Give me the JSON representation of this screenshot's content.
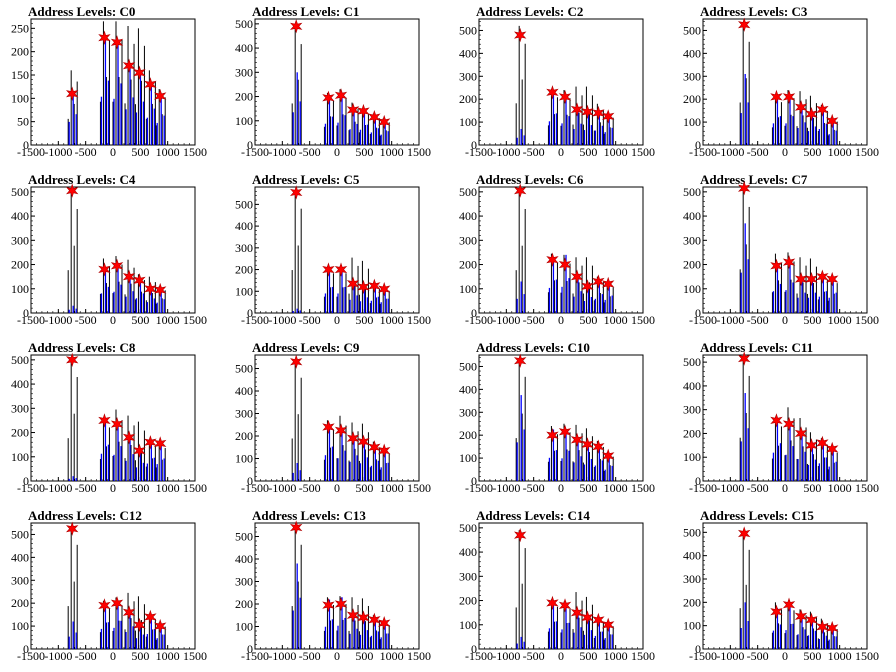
{
  "chart_data": [
    {
      "type": "bar",
      "title": "Address Levels: C0",
      "xlim": [
        -1500,
        1500
      ],
      "ylim": [
        0,
        270
      ],
      "xticks": [
        -1500,
        -1000,
        -500,
        0,
        500,
        1000,
        1500
      ],
      "yticks": [
        0,
        50,
        100,
        150,
        200,
        250
      ],
      "peaks": [
        {
          "x": -710,
          "black": 160,
          "blue": 110,
          "marker": 110
        },
        {
          "x": -120,
          "black": 265,
          "blue": 230,
          "marker": 230
        },
        {
          "x": 110,
          "black": 265,
          "blue": 220,
          "marker": 220
        },
        {
          "x": 330,
          "black": 255,
          "blue": 170,
          "marker": 170
        },
        {
          "x": 520,
          "black": 250,
          "blue": 155,
          "marker": 155
        },
        {
          "x": 720,
          "black": 160,
          "blue": 130,
          "marker": 130
        },
        {
          "x": 900,
          "black": 120,
          "blue": 105,
          "marker": 105
        }
      ]
    },
    {
      "type": "bar",
      "title": "Address Levels: C1",
      "xlim": [
        -1500,
        1500
      ],
      "ylim": [
        0,
        520
      ],
      "xticks": [
        -1500,
        -1000,
        -500,
        0,
        500,
        1000,
        1500
      ],
      "yticks": [
        0,
        100,
        200,
        300,
        400,
        500
      ],
      "peaks": [
        {
          "x": -710,
          "black": 490,
          "blue": 300,
          "marker": 490
        },
        {
          "x": -120,
          "black": 215,
          "blue": 195,
          "marker": 195
        },
        {
          "x": 110,
          "black": 230,
          "blue": 205,
          "marker": 205
        },
        {
          "x": 330,
          "black": 175,
          "blue": 145,
          "marker": 145
        },
        {
          "x": 520,
          "black": 150,
          "blue": 140,
          "marker": 140
        },
        {
          "x": 720,
          "black": 130,
          "blue": 115,
          "marker": 115
        },
        {
          "x": 900,
          "black": 110,
          "blue": 95,
          "marker": 95
        }
      ]
    },
    {
      "type": "bar",
      "title": "Address Levels: C2",
      "xlim": [
        -1500,
        1500
      ],
      "ylim": [
        0,
        550
      ],
      "xticks": [
        -1500,
        -1000,
        -500,
        0,
        500,
        1000,
        1500
      ],
      "yticks": [
        0,
        100,
        200,
        300,
        400,
        500
      ],
      "peaks": [
        {
          "x": -710,
          "black": 520,
          "blue": 70,
          "marker": 480
        },
        {
          "x": -120,
          "black": 245,
          "blue": 230,
          "marker": 230
        },
        {
          "x": 110,
          "black": 240,
          "blue": 210,
          "marker": 210
        },
        {
          "x": 330,
          "black": 255,
          "blue": 155,
          "marker": 155
        },
        {
          "x": 520,
          "black": 255,
          "blue": 145,
          "marker": 145
        },
        {
          "x": 720,
          "black": 180,
          "blue": 140,
          "marker": 140
        },
        {
          "x": 900,
          "black": 140,
          "blue": 125,
          "marker": 125
        }
      ]
    },
    {
      "type": "bar",
      "title": "Address Levels: C3",
      "xlim": [
        -1500,
        1500
      ],
      "ylim": [
        0,
        550
      ],
      "xticks": [
        -1500,
        -1000,
        -500,
        0,
        500,
        1000,
        1500
      ],
      "yticks": [
        0,
        100,
        200,
        300,
        400,
        500
      ],
      "peaks": [
        {
          "x": -710,
          "black": 530,
          "blue": 310,
          "marker": 525
        },
        {
          "x": -120,
          "black": 220,
          "blue": 210,
          "marker": 210
        },
        {
          "x": 110,
          "black": 240,
          "blue": 210,
          "marker": 210
        },
        {
          "x": 330,
          "black": 235,
          "blue": 165,
          "marker": 165
        },
        {
          "x": 520,
          "black": 215,
          "blue": 135,
          "marker": 135
        },
        {
          "x": 720,
          "black": 175,
          "blue": 155,
          "marker": 155
        },
        {
          "x": 900,
          "black": 120,
          "blue": 105,
          "marker": 105
        }
      ]
    },
    {
      "type": "bar",
      "title": "Address Levels: C4",
      "xlim": [
        -1500,
        1500
      ],
      "ylim": [
        0,
        520
      ],
      "xticks": [
        -1500,
        -1000,
        -500,
        0,
        500,
        1000,
        1500
      ],
      "yticks": [
        0,
        100,
        200,
        300,
        400,
        500
      ],
      "peaks": [
        {
          "x": -710,
          "black": 505,
          "blue": 30,
          "marker": 505
        },
        {
          "x": -120,
          "black": 225,
          "blue": 180,
          "marker": 180
        },
        {
          "x": 110,
          "black": 235,
          "blue": 195,
          "marker": 195
        },
        {
          "x": 330,
          "black": 220,
          "blue": 150,
          "marker": 150
        },
        {
          "x": 520,
          "black": 160,
          "blue": 135,
          "marker": 135
        },
        {
          "x": 720,
          "black": 150,
          "blue": 100,
          "marker": 100
        },
        {
          "x": 900,
          "black": 110,
          "blue": 95,
          "marker": 95
        }
      ]
    },
    {
      "type": "bar",
      "title": "Address Levels: C5",
      "xlim": [
        -1500,
        1500
      ],
      "ylim": [
        0,
        580
      ],
      "xticks": [
        -1500,
        -1000,
        -500,
        0,
        500,
        1000,
        1500
      ],
      "yticks": [
        0,
        100,
        200,
        300,
        400,
        500
      ],
      "peaks": [
        {
          "x": -710,
          "black": 565,
          "blue": 20,
          "marker": 555
        },
        {
          "x": -120,
          "black": 215,
          "blue": 200,
          "marker": 200
        },
        {
          "x": 110,
          "black": 215,
          "blue": 200,
          "marker": 200
        },
        {
          "x": 330,
          "black": 255,
          "blue": 135,
          "marker": 135
        },
        {
          "x": 520,
          "black": 240,
          "blue": 120,
          "marker": 120
        },
        {
          "x": 720,
          "black": 130,
          "blue": 125,
          "marker": 125
        },
        {
          "x": 900,
          "black": 120,
          "blue": 110,
          "marker": 110
        }
      ]
    },
    {
      "type": "bar",
      "title": "Address Levels: C6",
      "xlim": [
        -1500,
        1500
      ],
      "ylim": [
        0,
        520
      ],
      "xticks": [
        -1500,
        -1000,
        -500,
        0,
        500,
        1000,
        1500
      ],
      "yticks": [
        0,
        100,
        200,
        300,
        400,
        500
      ],
      "peaks": [
        {
          "x": -710,
          "black": 505,
          "blue": 130,
          "marker": 505
        },
        {
          "x": -120,
          "black": 245,
          "blue": 230,
          "marker": 220
        },
        {
          "x": 110,
          "black": 240,
          "blue": 240,
          "marker": 200
        },
        {
          "x": 330,
          "black": 230,
          "blue": 150,
          "marker": 150
        },
        {
          "x": 520,
          "black": 230,
          "blue": 110,
          "marker": 110
        },
        {
          "x": 720,
          "black": 150,
          "blue": 130,
          "marker": 130
        },
        {
          "x": 900,
          "black": 125,
          "blue": 120,
          "marker": 120
        }
      ]
    },
    {
      "type": "bar",
      "title": "Address Levels: C7",
      "xlim": [
        -1500,
        1500
      ],
      "ylim": [
        0,
        520
      ],
      "xticks": [
        -1500,
        -1000,
        -500,
        0,
        500,
        1000,
        1500
      ],
      "yticks": [
        0,
        100,
        200,
        300,
        400,
        500
      ],
      "peaks": [
        {
          "x": -710,
          "black": 515,
          "blue": 370,
          "marker": 515
        },
        {
          "x": -120,
          "black": 245,
          "blue": 200,
          "marker": 195
        },
        {
          "x": 110,
          "black": 250,
          "blue": 210,
          "marker": 210
        },
        {
          "x": 330,
          "black": 230,
          "blue": 140,
          "marker": 140
        },
        {
          "x": 520,
          "black": 225,
          "blue": 140,
          "marker": 140
        },
        {
          "x": 720,
          "black": 160,
          "blue": 150,
          "marker": 150
        },
        {
          "x": 900,
          "black": 145,
          "blue": 140,
          "marker": 140
        }
      ]
    },
    {
      "type": "bar",
      "title": "Address Levels: C8",
      "xlim": [
        -1500,
        1500
      ],
      "ylim": [
        0,
        520
      ],
      "xticks": [
        -1500,
        -1000,
        -500,
        0,
        500,
        1000,
        1500
      ],
      "yticks": [
        0,
        100,
        200,
        300,
        400,
        500
      ],
      "peaks": [
        {
          "x": -710,
          "black": 505,
          "blue": 20,
          "marker": 500
        },
        {
          "x": -120,
          "black": 260,
          "blue": 250,
          "marker": 250
        },
        {
          "x": 110,
          "black": 295,
          "blue": 240,
          "marker": 235
        },
        {
          "x": 330,
          "black": 270,
          "blue": 185,
          "marker": 180
        },
        {
          "x": 520,
          "black": 245,
          "blue": 125,
          "marker": 125
        },
        {
          "x": 720,
          "black": 170,
          "blue": 160,
          "marker": 160
        },
        {
          "x": 900,
          "black": 160,
          "blue": 155,
          "marker": 155
        }
      ]
    },
    {
      "type": "bar",
      "title": "Address Levels: C9",
      "xlim": [
        -1500,
        1500
      ],
      "ylim": [
        0,
        560
      ],
      "xticks": [
        -1500,
        -1000,
        -500,
        0,
        500,
        1000,
        1500
      ],
      "yticks": [
        0,
        100,
        200,
        300,
        400,
        500
      ],
      "peaks": [
        {
          "x": -710,
          "black": 540,
          "blue": 80,
          "marker": 530
        },
        {
          "x": -120,
          "black": 270,
          "blue": 255,
          "marker": 240
        },
        {
          "x": 110,
          "black": 290,
          "blue": 225,
          "marker": 225
        },
        {
          "x": 330,
          "black": 260,
          "blue": 190,
          "marker": 190
        },
        {
          "x": 520,
          "black": 255,
          "blue": 175,
          "marker": 175
        },
        {
          "x": 720,
          "black": 175,
          "blue": 150,
          "marker": 150
        },
        {
          "x": 900,
          "black": 145,
          "blue": 135,
          "marker": 135
        }
      ]
    },
    {
      "type": "bar",
      "title": "Address Levels: C10",
      "xlim": [
        -1500,
        1500
      ],
      "ylim": [
        0,
        550
      ],
      "xticks": [
        -1500,
        -1000,
        -500,
        0,
        500,
        1000,
        1500
      ],
      "yticks": [
        0,
        100,
        200,
        300,
        400,
        500
      ],
      "peaks": [
        {
          "x": -710,
          "black": 535,
          "blue": 375,
          "marker": 525
        },
        {
          "x": -120,
          "black": 240,
          "blue": 225,
          "marker": 200
        },
        {
          "x": 110,
          "black": 250,
          "blue": 220,
          "marker": 215
        },
        {
          "x": 330,
          "black": 245,
          "blue": 180,
          "marker": 180
        },
        {
          "x": 520,
          "black": 230,
          "blue": 160,
          "marker": 160
        },
        {
          "x": 720,
          "black": 175,
          "blue": 150,
          "marker": 150
        },
        {
          "x": 900,
          "black": 125,
          "blue": 110,
          "marker": 110
        }
      ]
    },
    {
      "type": "bar",
      "title": "Address Levels: C11",
      "xlim": [
        -1500,
        1500
      ],
      "ylim": [
        0,
        530
      ],
      "xticks": [
        -1500,
        -1000,
        -500,
        0,
        500,
        1000,
        1500
      ],
      "yticks": [
        0,
        100,
        200,
        300,
        400,
        500
      ],
      "peaks": [
        {
          "x": -710,
          "black": 520,
          "blue": 370,
          "marker": 515
        },
        {
          "x": -120,
          "black": 270,
          "blue": 265,
          "marker": 255
        },
        {
          "x": 110,
          "black": 310,
          "blue": 245,
          "marker": 240
        },
        {
          "x": 330,
          "black": 265,
          "blue": 205,
          "marker": 200
        },
        {
          "x": 520,
          "black": 205,
          "blue": 150,
          "marker": 150
        },
        {
          "x": 720,
          "black": 180,
          "blue": 165,
          "marker": 160
        },
        {
          "x": 900,
          "black": 140,
          "blue": 135,
          "marker": 135
        }
      ]
    },
    {
      "type": "bar",
      "title": "Address Levels: C12",
      "xlim": [
        -1500,
        1500
      ],
      "ylim": [
        0,
        550
      ],
      "xticks": [
        -1500,
        -1000,
        -500,
        0,
        500,
        1000,
        1500
      ],
      "yticks": [
        0,
        100,
        200,
        300,
        400,
        500
      ],
      "peaks": [
        {
          "x": -710,
          "black": 535,
          "blue": 120,
          "marker": 525
        },
        {
          "x": -120,
          "black": 210,
          "blue": 195,
          "marker": 190
        },
        {
          "x": 110,
          "black": 225,
          "blue": 205,
          "marker": 200
        },
        {
          "x": 330,
          "black": 245,
          "blue": 165,
          "marker": 160
        },
        {
          "x": 520,
          "black": 230,
          "blue": 105,
          "marker": 105
        },
        {
          "x": 720,
          "black": 155,
          "blue": 145,
          "marker": 140
        },
        {
          "x": 900,
          "black": 115,
          "blue": 105,
          "marker": 100
        }
      ]
    },
    {
      "type": "bar",
      "title": "Address Levels: C13",
      "xlim": [
        -1500,
        1500
      ],
      "ylim": [
        0,
        560
      ],
      "xticks": [
        -1500,
        -1000,
        -500,
        0,
        500,
        1000,
        1500
      ],
      "yticks": [
        0,
        100,
        200,
        300,
        400,
        500
      ],
      "peaks": [
        {
          "x": -710,
          "black": 545,
          "blue": 380,
          "marker": 540
        },
        {
          "x": -120,
          "black": 230,
          "blue": 220,
          "marker": 195
        },
        {
          "x": 110,
          "black": 235,
          "blue": 230,
          "marker": 200
        },
        {
          "x": 330,
          "black": 230,
          "blue": 150,
          "marker": 150
        },
        {
          "x": 520,
          "black": 225,
          "blue": 140,
          "marker": 140
        },
        {
          "x": 720,
          "black": 150,
          "blue": 130,
          "marker": 130
        },
        {
          "x": 900,
          "black": 125,
          "blue": 115,
          "marker": 115
        }
      ]
    },
    {
      "type": "bar",
      "title": "Address Levels: C14",
      "xlim": [
        -1500,
        1500
      ],
      "ylim": [
        0,
        520
      ],
      "xticks": [
        -1500,
        -1000,
        -500,
        0,
        500,
        1000,
        1500
      ],
      "yticks": [
        0,
        100,
        200,
        300,
        400,
        500
      ],
      "peaks": [
        {
          "x": -710,
          "black": 490,
          "blue": 50,
          "marker": 470
        },
        {
          "x": -120,
          "black": 205,
          "blue": 190,
          "marker": 190
        },
        {
          "x": 110,
          "black": 195,
          "blue": 180,
          "marker": 180
        },
        {
          "x": 330,
          "black": 235,
          "blue": 150,
          "marker": 150
        },
        {
          "x": 520,
          "black": 215,
          "blue": 130,
          "marker": 130
        },
        {
          "x": 720,
          "black": 130,
          "blue": 120,
          "marker": 120
        },
        {
          "x": 900,
          "black": 110,
          "blue": 100,
          "marker": 100
        }
      ]
    },
    {
      "type": "bar",
      "title": "Address Levels: C15",
      "xlim": [
        -1500,
        1500
      ],
      "ylim": [
        0,
        540
      ],
      "xticks": [
        -1500,
        -1000,
        -500,
        0,
        500,
        1000,
        1500
      ],
      "yticks": [
        0,
        100,
        200,
        300,
        400,
        500
      ],
      "peaks": [
        {
          "x": -710,
          "black": 500,
          "blue": 200,
          "marker": 495
        },
        {
          "x": -120,
          "black": 200,
          "blue": 175,
          "marker": 160
        },
        {
          "x": 110,
          "black": 195,
          "blue": 180,
          "marker": 190
        },
        {
          "x": 330,
          "black": 170,
          "blue": 140,
          "marker": 140
        },
        {
          "x": 520,
          "black": 160,
          "blue": 130,
          "marker": 125
        },
        {
          "x": 720,
          "black": 130,
          "blue": 95,
          "marker": 95
        },
        {
          "x": 900,
          "black": 100,
          "blue": 90,
          "marker": 90
        }
      ]
    }
  ],
  "colors": {
    "histogram_black": "#000000",
    "histogram_blue": "#0000ff",
    "marker_fill": "#ff0000",
    "marker_stroke": "#b00000",
    "axis": "#000000",
    "background": "#ffffff"
  }
}
